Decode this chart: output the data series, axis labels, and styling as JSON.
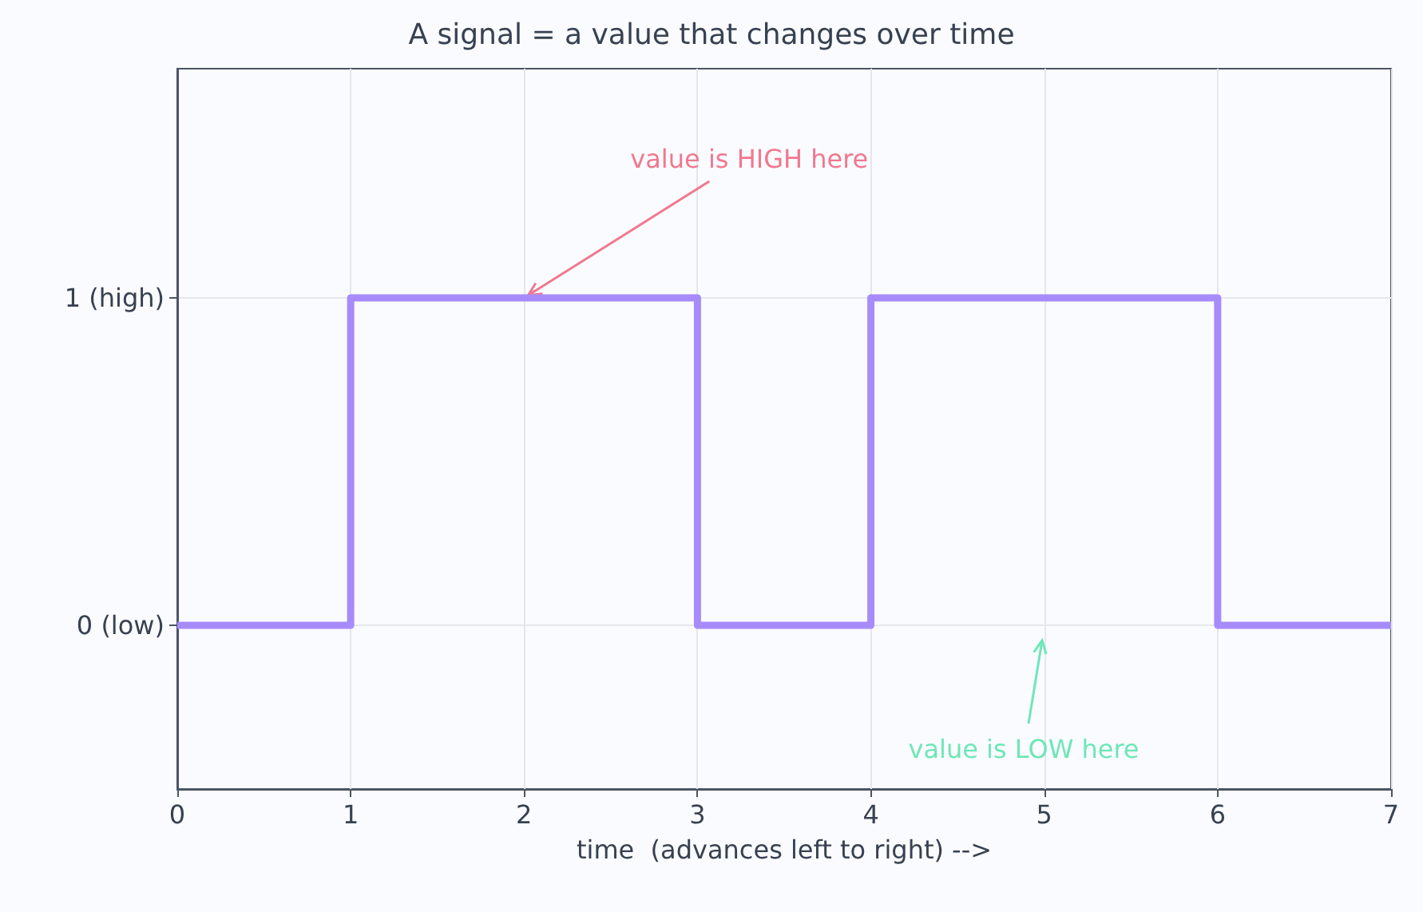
{
  "chart_data": {
    "type": "step",
    "title": "A signal = a value that changes over time",
    "xlabel": "time  (advances left to right) -->",
    "x": [
      0,
      1,
      3,
      4,
      6,
      7
    ],
    "series": [
      {
        "color": "#a78bfa",
        "values": [
          0,
          1,
          0,
          1,
          0,
          0
        ]
      }
    ],
    "xlim": [
      0,
      7
    ],
    "xticks": [
      0,
      1,
      2,
      3,
      4,
      5,
      6,
      7
    ],
    "ylim": [
      -0.5,
      1.7
    ],
    "yticks": [
      {
        "value": 0,
        "label": "0 (low)"
      },
      {
        "value": 1,
        "label": "1 (high)"
      }
    ],
    "grid": true,
    "marker": "none",
    "line_style": "solid",
    "annotations": [
      {
        "text": "value is HIGH here",
        "x": 2,
        "y": 1
      },
      "value is LOW here"
    ]
  }
}
